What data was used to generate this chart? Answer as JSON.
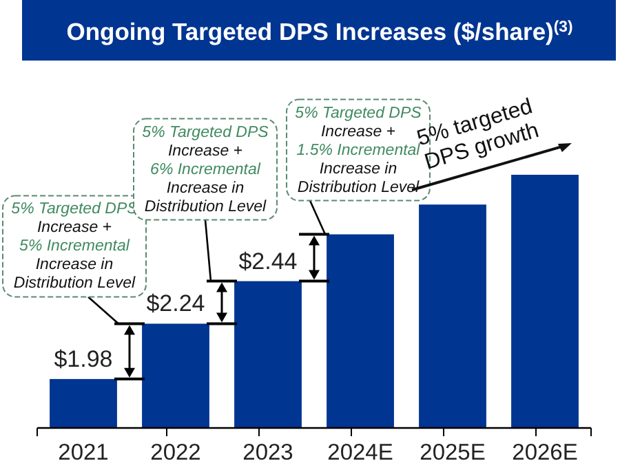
{
  "chart_data": {
    "type": "bar",
    "title": "Ongoing Targeted DPS Increases ($/share)$^{(3)}$",
    "categories": [
      "2021",
      "2022",
      "2023",
      "2024E",
      "2025E",
      "2026E"
    ],
    "values": [
      1.98,
      2.24,
      2.44,
      2.66,
      2.8,
      2.94
    ],
    "value_labels": [
      "$1.98",
      "$2.24",
      "$2.44",
      null,
      null,
      null
    ],
    "color": "#003591",
    "ylim": [
      1.75,
      2.94
    ],
    "tick_labels": "x",
    "annotations": [
      "5% Targeted DPS\nIncrease +\n5% Incremental\nIncrease in\nDistribution Level",
      "5% Targeted DPS\nIncrease +\n6% Incremental\nIncrease in\nDistribution Level",
      "5% Targeted DPS\nIncrease +\n1.5% Incremental\nIncrease in\nDistribution Level",
      "5% targeted\nDPS growth"
    ]
  }
}
